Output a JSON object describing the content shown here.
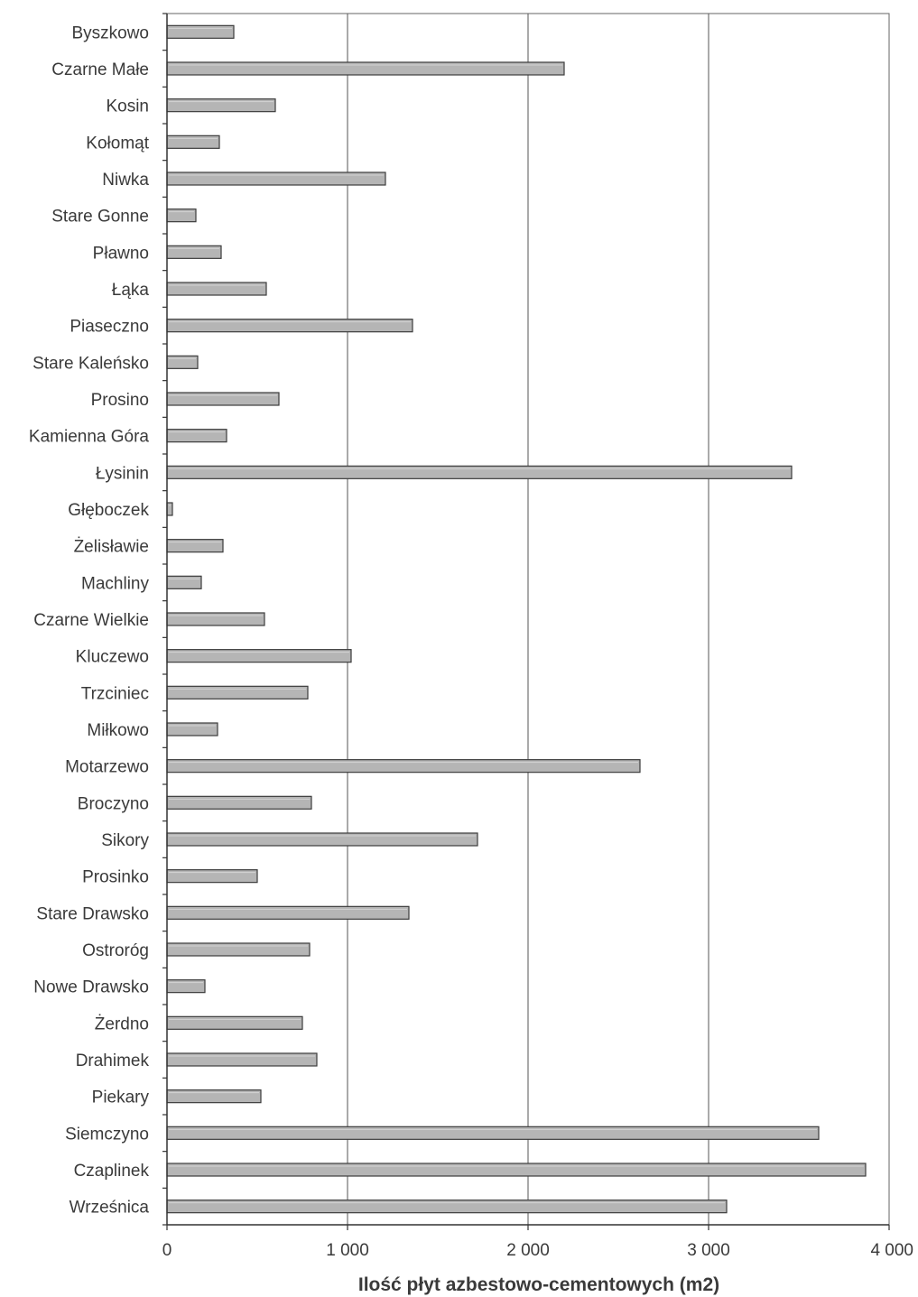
{
  "chart_data": {
    "type": "bar",
    "orientation": "horizontal",
    "categories": [
      "Byszkowo",
      "Czarne Małe",
      "Kosin",
      "Kołomąt",
      "Niwka",
      "Stare Gonne",
      "Pławno",
      "Łąka",
      "Piaseczno",
      "Stare Kaleńsko",
      "Prosino",
      "Kamienna Góra",
      "Łysinin",
      "Głęboczek",
      "Żelisławie",
      "Machliny",
      "Czarne Wielkie",
      "Kluczewo",
      "Trzciniec",
      "Miłkowo",
      "Motarzewo",
      "Broczyno",
      "Sikory",
      "Prosinko",
      "Stare Drawsko",
      "Ostroróg",
      "Nowe Drawsko",
      "Żerdno",
      "Drahimek",
      "Piekary",
      "Siemczyno",
      "Czaplinek",
      "Wrześnica"
    ],
    "values": [
      370,
      2200,
      600,
      290,
      1210,
      160,
      300,
      550,
      1360,
      170,
      620,
      330,
      3460,
      30,
      310,
      190,
      540,
      1020,
      780,
      280,
      2620,
      800,
      1720,
      500,
      1340,
      790,
      210,
      750,
      830,
      520,
      3610,
      3870,
      3100
    ],
    "title": "",
    "xlabel": "Ilość płyt azbestowo-cementowych (m2)",
    "ylabel": "",
    "xlim": [
      0,
      4000
    ],
    "xticks": [
      0,
      1000,
      2000,
      3000,
      4000
    ],
    "xtick_labels": [
      "0",
      "1 000",
      "2 000",
      "3 000",
      "4 000"
    ],
    "grid": "vertical",
    "legend": "none",
    "bar_color": "#b5b5b5",
    "bar_edge_color": "#3c3c3c"
  }
}
